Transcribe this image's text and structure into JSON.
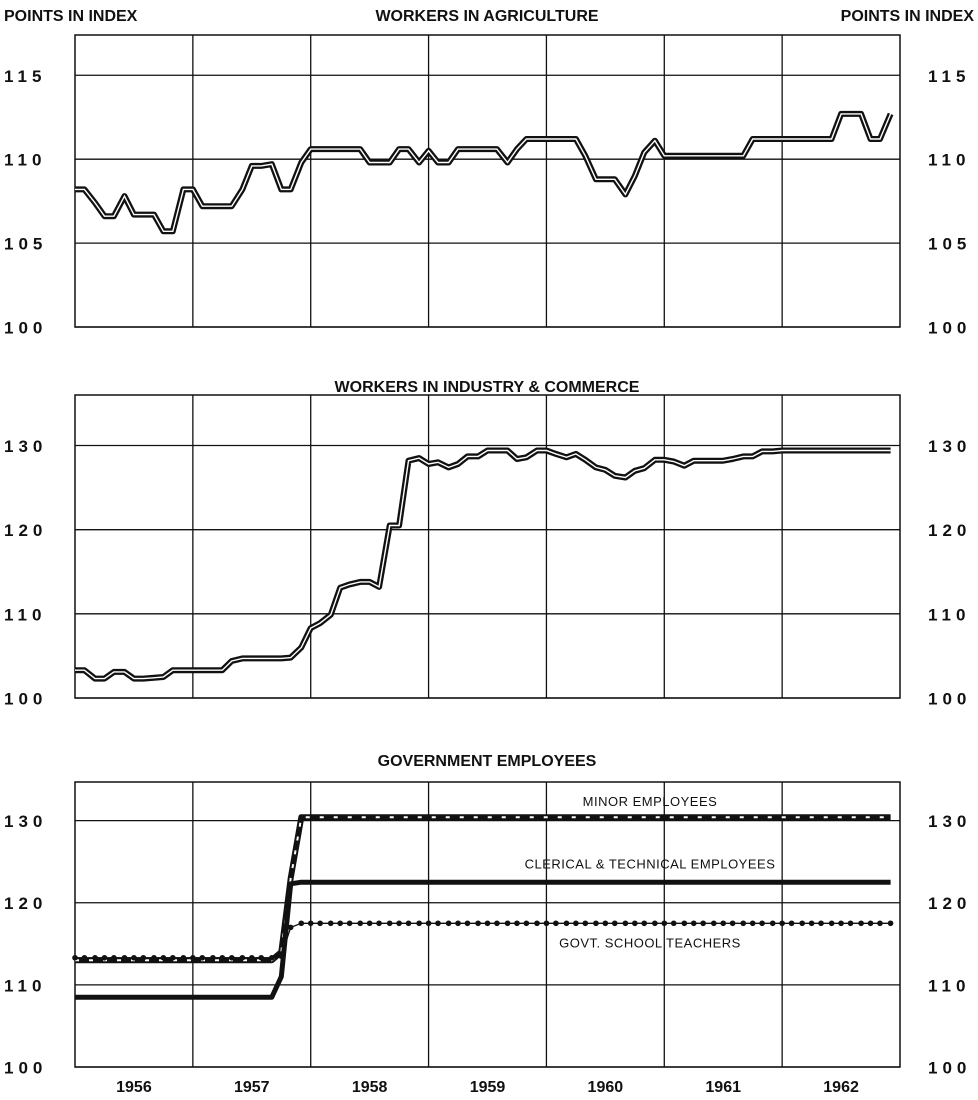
{
  "ylabel": "POINTS IN INDEX",
  "chart_data": [
    {
      "type": "line",
      "title": "WORKERS IN AGRICULTURE",
      "x": [
        1956,
        1956.08,
        1956.17,
        1956.25,
        1956.33,
        1956.42,
        1956.5,
        1956.58,
        1956.67,
        1956.75,
        1956.83,
        1956.92,
        1957,
        1957.08,
        1957.17,
        1957.25,
        1957.33,
        1957.42,
        1957.5,
        1957.58,
        1957.67,
        1957.75,
        1957.83,
        1957.92,
        1958,
        1958.08,
        1958.17,
        1958.25,
        1958.33,
        1958.42,
        1958.5,
        1958.58,
        1958.67,
        1958.75,
        1958.83,
        1958.92,
        1959,
        1959.08,
        1959.17,
        1959.25,
        1959.33,
        1959.42,
        1959.5,
        1959.58,
        1959.67,
        1959.75,
        1959.83,
        1959.92,
        1960,
        1960.08,
        1960.17,
        1960.25,
        1960.33,
        1960.42,
        1960.5,
        1960.58,
        1960.67,
        1960.75,
        1960.83,
        1960.92,
        1961,
        1961.08,
        1961.17,
        1961.25,
        1961.33,
        1961.42,
        1961.5,
        1961.58,
        1961.67,
        1961.75,
        1961.83,
        1961.92,
        1962,
        1962.08,
        1962.17,
        1962.25,
        1962.33,
        1962.42,
        1962.5,
        1962.58,
        1962.67,
        1962.75,
        1962.83,
        1962.92
      ],
      "series": [
        {
          "style": "double",
          "color": "#111111",
          "values": [
            108.2,
            108.2,
            107.4,
            106.6,
            106.6,
            107.8,
            106.7,
            106.7,
            106.7,
            105.7,
            105.7,
            108.2,
            108.2,
            107.2,
            107.2,
            107.2,
            107.2,
            108.2,
            109.6,
            109.6,
            109.7,
            108.2,
            108.2,
            109.8,
            110.6,
            110.6,
            110.6,
            110.6,
            110.6,
            110.6,
            109.8,
            109.8,
            109.8,
            110.6,
            110.6,
            109.8,
            110.5,
            109.8,
            109.8,
            110.6,
            110.6,
            110.6,
            110.6,
            110.6,
            109.8,
            110.6,
            111.2,
            111.2,
            111.2,
            111.2,
            111.2,
            111.2,
            110.2,
            108.8,
            108.8,
            108.8,
            107.9,
            109,
            110.4,
            111.1,
            110.2,
            110.2,
            110.2,
            110.2,
            110.2,
            110.2,
            110.2,
            110.2,
            110.2,
            111.2,
            111.2,
            111.2,
            111.2,
            111.2,
            111.2,
            111.2,
            111.2,
            111.2,
            112.7,
            112.7,
            112.7,
            111.2,
            111.2,
            112.7
          ]
        }
      ],
      "xlim": [
        1956,
        1963
      ],
      "xgrid": [
        1957,
        1958,
        1959,
        1960,
        1961,
        1962
      ],
      "ylim": [
        100,
        117.4
      ],
      "yticks": [
        100,
        105,
        110,
        115
      ],
      "grid": true
    },
    {
      "type": "line",
      "title": "WORKERS IN INDUSTRY & COMMERCE",
      "x": [
        1956,
        1956.08,
        1956.17,
        1956.25,
        1956.33,
        1956.42,
        1956.5,
        1956.58,
        1956.67,
        1956.75,
        1956.83,
        1956.92,
        1957,
        1957.08,
        1957.17,
        1957.25,
        1957.33,
        1957.42,
        1957.5,
        1957.58,
        1957.67,
        1957.75,
        1957.83,
        1957.92,
        1958,
        1958.08,
        1958.17,
        1958.25,
        1958.33,
        1958.42,
        1958.5,
        1958.58,
        1958.67,
        1958.75,
        1958.83,
        1958.92,
        1959,
        1959.08,
        1959.17,
        1959.25,
        1959.33,
        1959.42,
        1959.5,
        1959.58,
        1959.67,
        1959.75,
        1959.83,
        1959.92,
        1960,
        1960.08,
        1960.17,
        1960.25,
        1960.33,
        1960.42,
        1960.5,
        1960.58,
        1960.67,
        1960.75,
        1960.83,
        1960.92,
        1961,
        1961.08,
        1961.17,
        1961.25,
        1961.33,
        1961.42,
        1961.5,
        1961.58,
        1961.67,
        1961.75,
        1961.83,
        1961.92,
        1962,
        1962.08,
        1962.17,
        1962.25,
        1962.33,
        1962.42,
        1962.5,
        1962.58,
        1962.67,
        1962.75,
        1962.83,
        1962.92
      ],
      "series": [
        {
          "style": "double",
          "color": "#111111",
          "values": [
            103.3,
            103.3,
            102.3,
            102.3,
            103.1,
            103.1,
            102.3,
            102.3,
            102.4,
            102.5,
            103.3,
            103.3,
            103.3,
            103.3,
            103.3,
            103.3,
            104.4,
            104.7,
            104.7,
            104.7,
            104.7,
            104.7,
            104.8,
            106,
            108.3,
            108.9,
            109.9,
            113.1,
            113.5,
            113.8,
            113.8,
            113.2,
            120.5,
            120.5,
            128.2,
            128.5,
            127.8,
            128,
            127.4,
            127.8,
            128.7,
            128.7,
            129.4,
            129.4,
            129.4,
            128.4,
            128.6,
            129.4,
            129.4,
            129,
            128.6,
            129,
            128.3,
            127.4,
            127.1,
            126.4,
            126.2,
            127,
            127.3,
            128.3,
            128.3,
            128.1,
            127.6,
            128.2,
            128.2,
            128.2,
            128.2,
            128.4,
            128.7,
            128.7,
            129.3,
            129.3,
            129.4,
            129.4,
            129.4,
            129.4,
            129.4,
            129.4,
            129.4,
            129.4,
            129.4,
            129.4,
            129.4,
            129.4
          ]
        }
      ],
      "xlim": [
        1956,
        1963
      ],
      "xgrid": [
        1957,
        1958,
        1959,
        1960,
        1961,
        1962
      ],
      "ylim": [
        100,
        136
      ],
      "yticks": [
        100,
        110,
        120,
        130
      ],
      "grid": true
    },
    {
      "type": "line",
      "title": "GOVERNMENT EMPLOYEES",
      "x": [
        1956,
        1956.08,
        1956.17,
        1956.25,
        1956.33,
        1956.42,
        1956.5,
        1956.58,
        1956.67,
        1956.75,
        1956.83,
        1956.92,
        1957,
        1957.08,
        1957.17,
        1957.25,
        1957.33,
        1957.42,
        1957.5,
        1957.58,
        1957.67,
        1957.75,
        1957.83,
        1957.92,
        1958,
        1958.08,
        1958.17,
        1958.25,
        1958.33,
        1958.42,
        1958.5,
        1958.58,
        1958.67,
        1958.75,
        1958.83,
        1958.92,
        1959,
        1959.08,
        1959.17,
        1959.25,
        1959.33,
        1959.42,
        1959.5,
        1959.58,
        1959.67,
        1959.75,
        1959.83,
        1959.92,
        1960,
        1960.08,
        1960.17,
        1960.25,
        1960.33,
        1960.42,
        1960.5,
        1960.58,
        1960.67,
        1960.75,
        1960.83,
        1960.92,
        1961,
        1961.08,
        1961.17,
        1961.25,
        1961.33,
        1961.42,
        1961.5,
        1961.58,
        1961.67,
        1961.75,
        1961.83,
        1961.92,
        1962,
        1962.08,
        1962.17,
        1962.25,
        1962.33,
        1962.42,
        1962.5,
        1962.58,
        1962.67,
        1962.75,
        1962.83,
        1962.92
      ],
      "series": [
        {
          "name": "MINOR EMPLOYEES",
          "style": "dashed",
          "color": "#111111",
          "values": [
            113,
            113,
            113,
            113,
            113,
            113,
            113,
            113,
            113,
            113,
            113,
            113,
            113,
            113,
            113,
            113,
            113,
            113,
            113,
            113,
            113,
            114,
            123,
            130.4,
            130.4,
            130.4,
            130.4,
            130.4,
            130.4,
            130.4,
            130.4,
            130.4,
            130.4,
            130.4,
            130.4,
            130.4,
            130.4,
            130.4,
            130.4,
            130.4,
            130.4,
            130.4,
            130.4,
            130.4,
            130.4,
            130.4,
            130.4,
            130.4,
            130.4,
            130.4,
            130.4,
            130.4,
            130.4,
            130.4,
            130.4,
            130.4,
            130.4,
            130.4,
            130.4,
            130.4,
            130.4,
            130.4,
            130.4,
            130.4,
            130.4,
            130.4,
            130.4,
            130.4,
            130.4,
            130.4,
            130.4,
            130.4,
            130.4,
            130.4,
            130.4,
            130.4,
            130.4,
            130.4,
            130.4,
            130.4,
            130.4,
            130.4,
            130.4,
            130.4
          ]
        },
        {
          "name": "CLERICAL & TECHNICAL EMPLOYEES",
          "style": "solid",
          "color": "#111111",
          "values": [
            108.5,
            108.5,
            108.5,
            108.5,
            108.5,
            108.5,
            108.5,
            108.5,
            108.5,
            108.5,
            108.5,
            108.5,
            108.5,
            108.5,
            108.5,
            108.5,
            108.5,
            108.5,
            108.5,
            108.5,
            108.5,
            111,
            122.3,
            122.5,
            122.5,
            122.5,
            122.5,
            122.5,
            122.5,
            122.5,
            122.5,
            122.5,
            122.5,
            122.5,
            122.5,
            122.5,
            122.5,
            122.5,
            122.5,
            122.5,
            122.5,
            122.5,
            122.5,
            122.5,
            122.5,
            122.5,
            122.5,
            122.5,
            122.5,
            122.5,
            122.5,
            122.5,
            122.5,
            122.5,
            122.5,
            122.5,
            122.5,
            122.5,
            122.5,
            122.5,
            122.5,
            122.5,
            122.5,
            122.5,
            122.5,
            122.5,
            122.5,
            122.5,
            122.5,
            122.5,
            122.5,
            122.5,
            122.5,
            122.5,
            122.5,
            122.5,
            122.5,
            122.5,
            122.5,
            122.5,
            122.5,
            122.5,
            122.5,
            122.5
          ]
        },
        {
          "name": "GOVT. SCHOOL TEACHERS",
          "style": "dotted",
          "color": "#111111",
          "values": [
            113.3,
            113.3,
            113.3,
            113.3,
            113.3,
            113.3,
            113.3,
            113.3,
            113.3,
            113.3,
            113.3,
            113.3,
            113.3,
            113.3,
            113.3,
            113.3,
            113.3,
            113.3,
            113.3,
            113.3,
            113.3,
            113.5,
            117,
            117.5,
            117.5,
            117.5,
            117.5,
            117.5,
            117.5,
            117.5,
            117.5,
            117.5,
            117.5,
            117.5,
            117.5,
            117.5,
            117.5,
            117.5,
            117.5,
            117.5,
            117.5,
            117.5,
            117.5,
            117.5,
            117.5,
            117.5,
            117.5,
            117.5,
            117.5,
            117.5,
            117.5,
            117.5,
            117.5,
            117.5,
            117.5,
            117.5,
            117.5,
            117.5,
            117.5,
            117.5,
            117.5,
            117.5,
            117.5,
            117.5,
            117.5,
            117.5,
            117.5,
            117.5,
            117.5,
            117.5,
            117.5,
            117.5,
            117.5,
            117.5,
            117.5,
            117.5,
            117.5,
            117.5,
            117.5,
            117.5,
            117.5,
            117.5,
            117.5,
            117.5
          ]
        }
      ],
      "xlim": [
        1956,
        1963
      ],
      "xgrid": [
        1957,
        1958,
        1959,
        1960,
        1961,
        1962
      ],
      "xticks": [
        {
          "value": 1956.5,
          "label": "1956"
        },
        {
          "value": 1957.5,
          "label": "1957"
        },
        {
          "value": 1958.5,
          "label": "1958"
        },
        {
          "value": 1959.5,
          "label": "1959"
        },
        {
          "value": 1960.5,
          "label": "1960"
        },
        {
          "value": 1961.5,
          "label": "1961"
        },
        {
          "value": 1962.5,
          "label": "1962"
        }
      ],
      "ylim": [
        100,
        134.7
      ],
      "yticks": [
        100,
        110,
        120,
        130
      ],
      "grid": true
    }
  ]
}
